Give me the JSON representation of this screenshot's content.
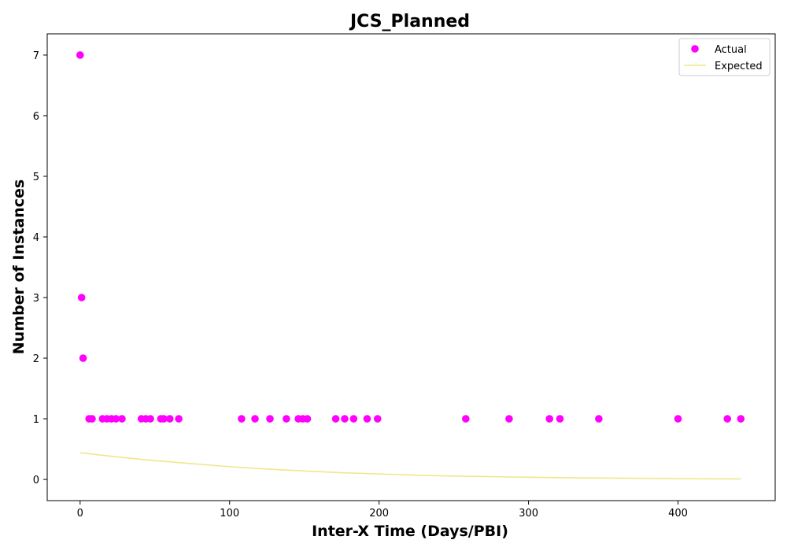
{
  "chart_data": {
    "type": "scatter",
    "title": "JCS_Planned",
    "xlabel": "Inter-X Time (Days/PBI)",
    "ylabel": "Number of Instances",
    "xlim": [
      -22,
      465
    ],
    "ylim": [
      -0.35,
      7.35
    ],
    "xticks": [
      0,
      100,
      200,
      300,
      400
    ],
    "yticks": [
      0,
      1,
      2,
      3,
      4,
      5,
      6,
      7
    ],
    "grid": false,
    "legend_position": "top-right",
    "series": [
      {
        "name": "Actual",
        "kind": "scatter",
        "color": "#ff00ff",
        "x": [
          0,
          1,
          2,
          6,
          8,
          15,
          18,
          21,
          24,
          28,
          41,
          44,
          47,
          54,
          56,
          60,
          66,
          108,
          117,
          127,
          138,
          146,
          149,
          152,
          171,
          177,
          183,
          192,
          199,
          258,
          287,
          314,
          321,
          347,
          400,
          433,
          442
        ],
        "y": [
          7,
          3,
          2,
          1,
          1,
          1,
          1,
          1,
          1,
          1,
          1,
          1,
          1,
          1,
          1,
          1,
          1,
          1,
          1,
          1,
          1,
          1,
          1,
          1,
          1,
          1,
          1,
          1,
          1,
          1,
          1,
          1,
          1,
          1,
          1,
          1,
          1
        ]
      },
      {
        "name": "Expected",
        "kind": "line",
        "color": "#f0e68c",
        "x": [
          0,
          25,
          50,
          75,
          100,
          125,
          150,
          175,
          200,
          225,
          250,
          275,
          300,
          325,
          350,
          375,
          400,
          425,
          442
        ],
        "y": [
          0.44,
          0.37,
          0.31,
          0.26,
          0.21,
          0.17,
          0.14,
          0.11,
          0.09,
          0.07,
          0.055,
          0.045,
          0.035,
          0.028,
          0.022,
          0.017,
          0.013,
          0.01,
          0.008
        ]
      }
    ]
  }
}
